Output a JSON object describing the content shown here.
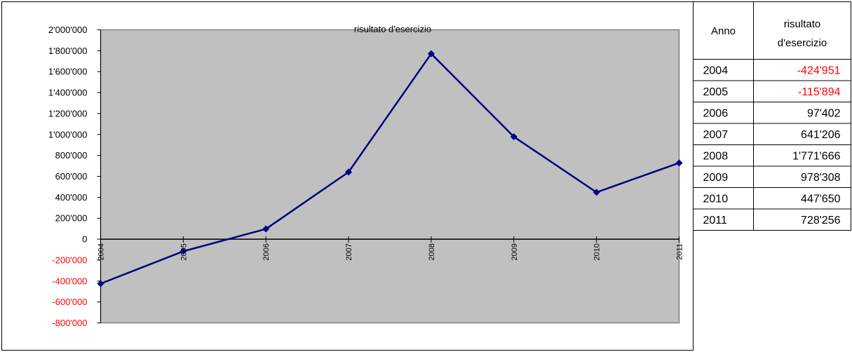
{
  "chart_data": {
    "type": "line",
    "title": "risultato d'esercizio",
    "xlabel": "",
    "ylabel": "",
    "categories": [
      "2004",
      "2005",
      "2006",
      "2007",
      "2008",
      "2009",
      "2010",
      "2011"
    ],
    "series": [
      {
        "values": [
          -424951,
          -115894,
          97402,
          641206,
          1771666,
          978308,
          447650,
          728256
        ]
      }
    ],
    "ylim": [
      -800000,
      2000000
    ],
    "y_ticks": [
      "2'000'000",
      "1'800'000",
      "1'600'000",
      "1'400'000",
      "1'200'000",
      "1'000'000",
      "800'000",
      "600'000",
      "400'000",
      "200'000",
      "0",
      "-200'000",
      "-400'000",
      "-600'000",
      "-800'000"
    ],
    "y_tick_values": [
      2000000,
      1800000,
      1600000,
      1400000,
      1200000,
      1000000,
      800000,
      600000,
      400000,
      200000,
      0,
      -200000,
      -400000,
      -600000,
      -800000
    ],
    "negative_label_color": "#ff0000",
    "plot_background": "#c0c0c0",
    "line_color": "#000080",
    "grid": false,
    "legend": "none"
  },
  "table": {
    "headers": [
      "Anno",
      "risultato",
      "d'esercizio"
    ],
    "rows": [
      {
        "year": "2004",
        "value": "-424'951",
        "negative": true
      },
      {
        "year": "2005",
        "value": "-115'894",
        "negative": true
      },
      {
        "year": "2006",
        "value": "97'402",
        "negative": false
      },
      {
        "year": "2007",
        "value": "641'206",
        "negative": false
      },
      {
        "year": "2008",
        "value": "1'771'666",
        "negative": false
      },
      {
        "year": "2009",
        "value": "978'308",
        "negative": false
      },
      {
        "year": "2010",
        "value": "447'650",
        "negative": false
      },
      {
        "year": "2011",
        "value": "728'256",
        "negative": false
      }
    ]
  }
}
